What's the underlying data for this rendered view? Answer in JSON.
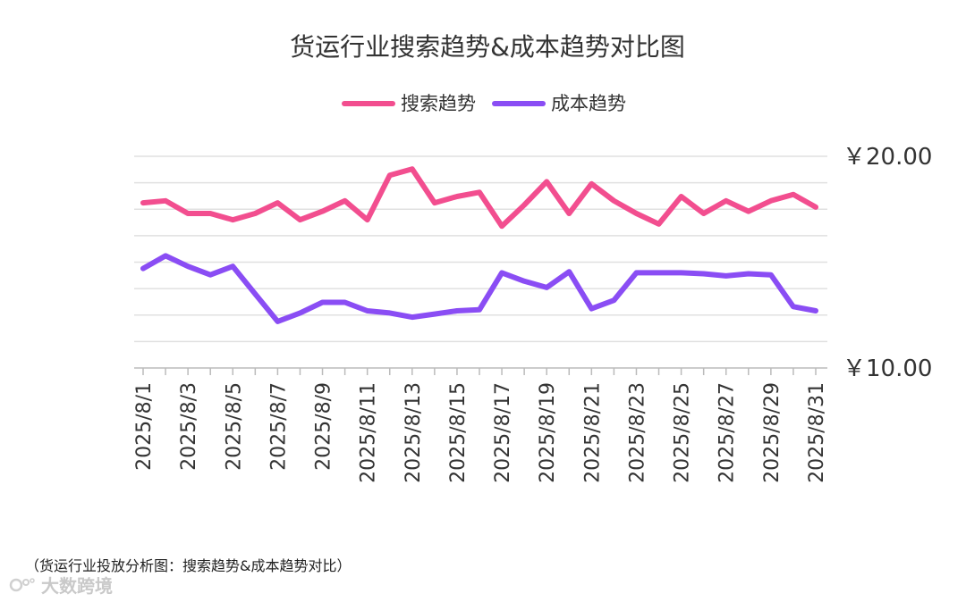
{
  "chart_data": {
    "type": "line",
    "title": "货运行业搜索趋势&成本趋势对比图",
    "x": [
      "2025/8/1",
      "2025/8/2",
      "2025/8/3",
      "2025/8/4",
      "2025/8/5",
      "2025/8/6",
      "2025/8/7",
      "2025/8/8",
      "2025/8/9",
      "2025/8/10",
      "2025/8/11",
      "2025/8/12",
      "2025/8/13",
      "2025/8/14",
      "2025/8/15",
      "2025/8/16",
      "2025/8/17",
      "2025/8/18",
      "2025/8/19",
      "2025/8/20",
      "2025/8/21",
      "2025/8/22",
      "2025/8/23",
      "2025/8/24",
      "2025/8/25",
      "2025/8/26",
      "2025/8/27",
      "2025/8/28",
      "2025/8/29",
      "2025/8/30",
      "2025/8/31"
    ],
    "x_tick_labels": [
      "2025/8/1",
      "2025/8/3",
      "2025/8/5",
      "2025/8/7",
      "2025/8/9",
      "2025/8/11",
      "2025/8/13",
      "2025/8/15",
      "2025/8/17",
      "2025/8/19",
      "2025/8/21",
      "2025/8/23",
      "2025/8/25",
      "2025/8/27",
      "2025/8/29",
      "2025/8/31"
    ],
    "series": [
      {
        "name": "搜索趋势",
        "color": "#f24e8f",
        "values": [
          17.8,
          17.9,
          17.3,
          17.3,
          17.0,
          17.3,
          17.8,
          17.0,
          17.4,
          17.9,
          17.0,
          19.1,
          19.4,
          17.8,
          18.1,
          18.3,
          16.7,
          17.7,
          18.8,
          17.3,
          18.7,
          17.9,
          17.3,
          16.8,
          18.1,
          17.3,
          17.9,
          17.4,
          17.9,
          18.2,
          17.6
        ]
      },
      {
        "name": "成本趋势",
        "color": "#8a4df4",
        "values": [
          14.7,
          15.3,
          14.8,
          14.4,
          14.8,
          13.5,
          12.2,
          12.6,
          13.1,
          13.1,
          12.7,
          12.6,
          12.4,
          12.55,
          12.7,
          12.75,
          14.5,
          14.1,
          13.8,
          14.55,
          12.8,
          13.2,
          14.5,
          14.5,
          14.5,
          14.45,
          14.35,
          14.45,
          14.4,
          12.9,
          12.7
        ]
      }
    ],
    "y_tick_labels": [
      "￥10.00",
      "￥20.00"
    ],
    "ylim": [
      10,
      20
    ],
    "grid": true,
    "legend": "top-center"
  },
  "caption": "（货运行业投放分析图：搜索趋势&成本趋势对比）",
  "watermark": "大数跨境"
}
